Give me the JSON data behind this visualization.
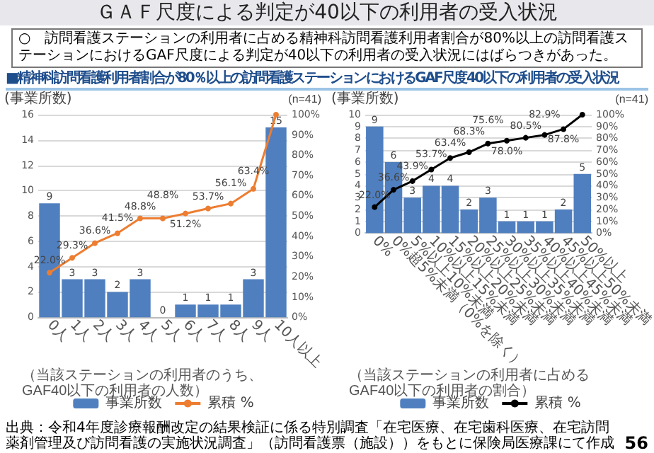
{
  "chart_data": [
    {
      "type": "other",
      "title": "ＧＡＦ尺度による判定が40以下の利用者の受入状況",
      "subtitle": "○　訪問看護ステーションの利用者に占める精神科訪問看護利用者割合が80%以上の訪問看護ステーションにおけるGAF尺度による判定が40以下の利用者の受入状況にはばらつきがあった。",
      "annotations": [
        "■精神科訪問看護利用者割合が80％以上の訪問看護ステーションにおけるGAF尺度40以下の利用者の受入状況"
      ]
    },
    {
      "type": "bar",
      "categories": [
        "0人",
        "1人",
        "2人",
        "3人",
        "4人",
        "5人",
        "6人",
        "7人",
        "8人",
        "9人",
        "10人以上"
      ],
      "ylabel": "(事業所数)",
      "xlabel": "（当該ステーションの利用者のうち、GAF40以下の利用者の人数）",
      "annotations": [
        "(n=41)"
      ],
      "ylim": [
        0,
        16
      ],
      "yticks": [
        0,
        2,
        4,
        6,
        8,
        10,
        12,
        14,
        16
      ],
      "y2lim": [
        0,
        100
      ],
      "y2ticks": [
        {
          "value": 0,
          "label": "0%"
        },
        {
          "value": 10,
          "label": "10%"
        },
        {
          "value": 20,
          "label": "20%"
        },
        {
          "value": 30,
          "label": "30%"
        },
        {
          "value": 40,
          "label": "40%"
        },
        {
          "value": 50,
          "label": "50%"
        },
        {
          "value": 60,
          "label": "60%"
        },
        {
          "value": 70,
          "label": "70%"
        },
        {
          "value": 80,
          "label": "80%"
        },
        {
          "value": 90,
          "label": "90%"
        },
        {
          "value": 100,
          "label": "100%"
        }
      ],
      "grid": "y",
      "legend": "bottom",
      "marker": "circle",
      "series": [
        {
          "name": "事業所数",
          "type": "bar",
          "color": "#4f7fbf",
          "values": [
            9,
            3,
            3,
            2,
            3,
            0,
            1,
            1,
            1,
            3,
            15
          ],
          "value_labels": [
            "9",
            "3",
            "3",
            "2",
            "3",
            "0",
            "1",
            "1",
            "1",
            "3",
            "15"
          ]
        },
        {
          "name": "累積 %",
          "type": "line",
          "axis": "y2",
          "color": "#ed7d31",
          "values": [
            22.0,
            29.3,
            36.6,
            41.5,
            48.8,
            48.8,
            51.2,
            53.7,
            56.1,
            63.4,
            100
          ],
          "value_labels": [
            "22.0%",
            "29.3%",
            "36.6%",
            "41.5%",
            "48.8%",
            "48.8%",
            "51.2%",
            "53.7%",
            "56.1%",
            "63.4%",
            null
          ]
        }
      ]
    },
    {
      "type": "bar",
      "categories": [
        "0%",
        "0%超5%未満（0%を除く）",
        "5%以上10%未満",
        "10%以上15%未満",
        "15%以上20%未満",
        "20%以上25%未満",
        "25%以上30%未満",
        "30%以上35%未満",
        "35%以上40%未満",
        "40%以上45%未満",
        "45%以上50%未満",
        "50%以上"
      ],
      "ylabel": "(事業所数)",
      "xlabel": "（当該ステーションの利用者に占めるGAF40以下の利用者の割合）",
      "annotations": [
        "(n=41)"
      ],
      "ylim": [
        0,
        10
      ],
      "yticks": [
        0,
        1,
        2,
        3,
        4,
        5,
        6,
        7,
        8,
        9,
        10
      ],
      "y2lim": [
        0,
        100
      ],
      "y2ticks": [
        {
          "value": 0,
          "label": "0%"
        },
        {
          "value": 10,
          "label": "10%"
        },
        {
          "value": 20,
          "label": "20%"
        },
        {
          "value": 30,
          "label": "30%"
        },
        {
          "value": 40,
          "label": "40%"
        },
        {
          "value": 50,
          "label": "50%"
        },
        {
          "value": 60,
          "label": "60%"
        },
        {
          "value": 70,
          "label": "70%"
        },
        {
          "value": 80,
          "label": "80%"
        },
        {
          "value": 90,
          "label": "90%"
        },
        {
          "value": 100,
          "label": "100%"
        }
      ],
      "grid": "y",
      "legend": "bottom",
      "marker": "circle",
      "series": [
        {
          "name": "事業所数",
          "type": "bar",
          "color": "#4f7fbf",
          "values": [
            9,
            6,
            3,
            4,
            4,
            2,
            3,
            1,
            1,
            1,
            2,
            5
          ],
          "value_labels": [
            "9",
            "6",
            "3",
            "4",
            "4",
            "2",
            "3",
            "1",
            "1",
            "1",
            "2",
            "5"
          ]
        },
        {
          "name": "累積 %",
          "type": "line",
          "axis": "y2",
          "color": "#000000",
          "values": [
            22.0,
            36.6,
            43.9,
            53.7,
            63.4,
            68.3,
            75.6,
            78.0,
            80.5,
            82.9,
            87.8,
            100
          ],
          "value_labels": [
            "22.0%",
            "36.6%",
            "43.9%",
            "53.7%",
            "63.4%",
            "68.3%",
            "75.6%",
            "78.0%",
            "80.5%",
            "82.9%",
            "87.8%",
            null
          ]
        }
      ]
    },
    {
      "type": "other",
      "annotations": [
        "出典：令和4年度診療報酬改定の結果検証に係る特別調査「在宅医療、在宅歯科医療、在宅訪問薬剤管理及び訪問看護の実施状況調査」（訪問看護票（施設））をもとに保険局医療課にて作成",
        "56"
      ]
    }
  ]
}
